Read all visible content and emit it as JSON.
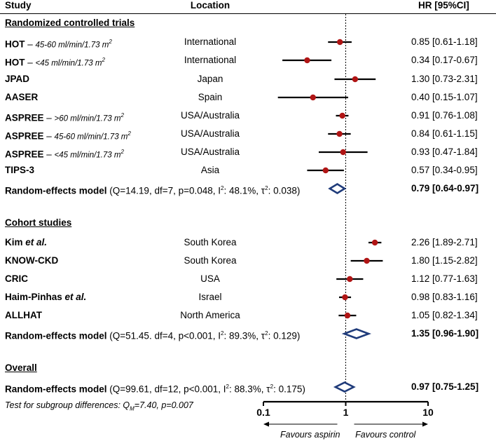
{
  "header": {
    "study": "Study",
    "location": "Location",
    "hr": "HR [95%CI]"
  },
  "sections": {
    "rct": "Randomized controlled trials",
    "cohort": "Cohort studies",
    "overall": "Overall"
  },
  "rows": {
    "r0": {
      "name": "HOT",
      "sep": " – ",
      "sub": "45-60 ml/min/1.73 m",
      "sup": "2",
      "location": "International",
      "hr": "0.85 [0.61-1.18]"
    },
    "r1": {
      "name": "HOT",
      "sep": " – ",
      "sub": "<45 ml/min/1.73 m",
      "sup": "2",
      "location": "International",
      "hr": "0.34 [0.17-0.67]"
    },
    "r2": {
      "name": "JPAD",
      "location": "Japan",
      "hr": "1.30 [0.73-2.31]"
    },
    "r3": {
      "name": "AASER",
      "location": "Spain",
      "hr": "0.40 [0.15-1.07]"
    },
    "r4": {
      "name": "ASPREE",
      "sep": " – ",
      "sub": ">60 ml/min/1.73 m",
      "sup": "2",
      "location": "USA/Australia",
      "hr": "0.91 [0.76-1.08]"
    },
    "r5": {
      "name": "ASPREE",
      "sep": " – ",
      "sub": "45-60 ml/min/1.73 m",
      "sup": "2",
      "location": "USA/Australia",
      "hr": "0.84 [0.61-1.15]"
    },
    "r6": {
      "name": "ASPREE",
      "sep": " – ",
      "sub": "<45 ml/min/1.73 m",
      "sup": "2",
      "location": "USA/Australia",
      "hr": "0.93 [0.47-1.84]"
    },
    "r7": {
      "name": "TIPS-3",
      "location": "Asia",
      "hr": "0.57 [0.34-0.95]"
    },
    "c0": {
      "name": "Kim ",
      "etal": "et al.",
      "location": "South Korea",
      "hr": "2.26 [1.89-2.71]"
    },
    "c1": {
      "name": "KNOW-CKD",
      "location": "South Korea",
      "hr": "1.80 [1.15-2.82]"
    },
    "c2": {
      "name": "CRIC",
      "location": "USA",
      "hr": "1.12 [0.77-1.63]"
    },
    "c3": {
      "name": "Haim-Pinhas ",
      "etal": "et al.",
      "location": "Israel",
      "hr": "0.98 [0.83-1.16]"
    },
    "c4": {
      "name": "ALLHAT",
      "location": "North America",
      "hr": "1.05 [0.82-1.34]"
    }
  },
  "models": {
    "rct": {
      "label": "Random-effects model",
      "stats_a": " (Q=14.19, df=7, p=0.048, I",
      "stats_b": ": 48.1%, τ",
      "stats_c": ": 0.038)",
      "sup": "2",
      "hr": "0.79 [0.64-0.97]"
    },
    "cohort": {
      "label": "Random-effects model",
      "stats_a": " (Q=51.45. df=4, p<0.001, I",
      "stats_b": ": 89.3%, τ",
      "stats_c": ": 0.129)",
      "sup": "2",
      "hr": "1.35 [0.96-1.90]"
    },
    "overall": {
      "label": "Random-effects model",
      "stats_a": " (Q=99.61, df=12, p<0.001, I",
      "stats_b": ": 88.3%, τ",
      "stats_c": ": 0.175)",
      "sup": "2",
      "hr": "0.97 [0.75-1.25]"
    }
  },
  "test": {
    "a": "Test for subgroup differences: Q",
    "sub": "M",
    "b": "=7.40, p=0.007"
  },
  "chart_data": {
    "type": "forest",
    "scale": "log",
    "xlim": [
      0.1,
      10
    ],
    "ticks": [
      "0.1",
      "1",
      "10"
    ],
    "ref_line": 1,
    "favours_left": "Favours aspirin",
    "favours_right": "Favours control",
    "colors": {
      "point": "#b01515",
      "diamond": "#1f3b7a",
      "line": "#000000"
    },
    "studies": [
      {
        "id": "r0",
        "hr": 0.85,
        "lo": 0.61,
        "hi": 1.18
      },
      {
        "id": "r1",
        "hr": 0.34,
        "lo": 0.17,
        "hi": 0.67
      },
      {
        "id": "r2",
        "hr": 1.3,
        "lo": 0.73,
        "hi": 2.31
      },
      {
        "id": "r3",
        "hr": 0.4,
        "lo": 0.15,
        "hi": 1.07
      },
      {
        "id": "r4",
        "hr": 0.91,
        "lo": 0.76,
        "hi": 1.08
      },
      {
        "id": "r5",
        "hr": 0.84,
        "lo": 0.61,
        "hi": 1.15
      },
      {
        "id": "r6",
        "hr": 0.93,
        "lo": 0.47,
        "hi": 1.84
      },
      {
        "id": "r7",
        "hr": 0.57,
        "lo": 0.34,
        "hi": 0.95
      },
      {
        "id": "c0",
        "hr": 2.26,
        "lo": 1.89,
        "hi": 2.71
      },
      {
        "id": "c1",
        "hr": 1.8,
        "lo": 1.15,
        "hi": 2.82
      },
      {
        "id": "c2",
        "hr": 1.12,
        "lo": 0.77,
        "hi": 1.63
      },
      {
        "id": "c3",
        "hr": 0.98,
        "lo": 0.83,
        "hi": 1.16
      },
      {
        "id": "c4",
        "hr": 1.05,
        "lo": 0.82,
        "hi": 1.34
      }
    ],
    "pooled": [
      {
        "id": "rct",
        "hr": 0.79,
        "lo": 0.64,
        "hi": 0.97
      },
      {
        "id": "cohort",
        "hr": 1.35,
        "lo": 0.96,
        "hi": 1.9
      },
      {
        "id": "overall",
        "hr": 0.97,
        "lo": 0.75,
        "hi": 1.25
      }
    ]
  }
}
